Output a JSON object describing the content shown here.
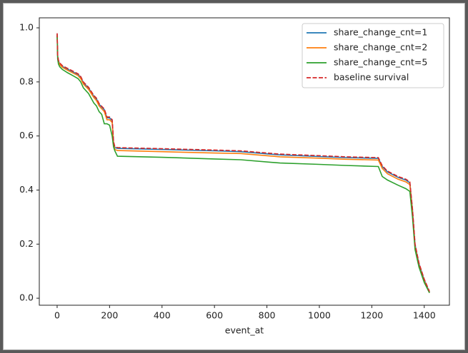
{
  "chart_data": {
    "type": "line",
    "xlabel": "event_at",
    "x": [
      0,
      2,
      5,
      10,
      20,
      40,
      60,
      80,
      90,
      100,
      120,
      140,
      150,
      160,
      170,
      180,
      190,
      200,
      210,
      215,
      220,
      230,
      400,
      600,
      700,
      850,
      1000,
      1100,
      1225,
      1240,
      1260,
      1300,
      1330,
      1345,
      1355,
      1365,
      1380,
      1400,
      1420
    ],
    "series": [
      {
        "name": "share_change_cnt=1",
        "color": "#1f77b4",
        "linestyle": "solid",
        "values": [
          0.977,
          0.897,
          0.877,
          0.867,
          0.857,
          0.847,
          0.837,
          0.827,
          0.817,
          0.797,
          0.777,
          0.747,
          0.737,
          0.717,
          0.707,
          0.697,
          0.667,
          0.667,
          0.657,
          0.577,
          0.557,
          0.554,
          0.55,
          0.545,
          0.542,
          0.53,
          0.524,
          0.52,
          0.517,
          0.487,
          0.467,
          0.447,
          0.437,
          0.427,
          0.327,
          0.197,
          0.127,
          0.067,
          0.022
        ]
      },
      {
        "name": "share_change_cnt=2",
        "color": "#ff7f0e",
        "linestyle": "solid",
        "values": [
          0.975,
          0.895,
          0.874,
          0.864,
          0.854,
          0.843,
          0.833,
          0.823,
          0.812,
          0.792,
          0.772,
          0.742,
          0.731,
          0.711,
          0.701,
          0.69,
          0.66,
          0.66,
          0.65,
          0.57,
          0.55,
          0.546,
          0.542,
          0.537,
          0.535,
          0.523,
          0.518,
          0.514,
          0.511,
          0.48,
          0.46,
          0.44,
          0.43,
          0.42,
          0.32,
          0.19,
          0.12,
          0.062,
          0.02
        ]
      },
      {
        "name": "share_change_cnt=5",
        "color": "#2ca02c",
        "linestyle": "solid",
        "values": [
          0.97,
          0.885,
          0.866,
          0.856,
          0.846,
          0.834,
          0.823,
          0.812,
          0.8,
          0.778,
          0.757,
          0.722,
          0.711,
          0.69,
          0.68,
          0.645,
          0.645,
          0.64,
          0.6,
          0.56,
          0.545,
          0.525,
          0.521,
          0.515,
          0.512,
          0.5,
          0.495,
          0.491,
          0.487,
          0.45,
          0.437,
          0.418,
          0.405,
          0.395,
          0.3,
          0.18,
          0.115,
          0.058,
          0.02
        ]
      },
      {
        "name": "baseline survival",
        "color": "#d62728",
        "linestyle": "dashed",
        "values": [
          0.98,
          0.9,
          0.88,
          0.87,
          0.86,
          0.85,
          0.84,
          0.83,
          0.82,
          0.8,
          0.78,
          0.75,
          0.74,
          0.72,
          0.71,
          0.7,
          0.67,
          0.67,
          0.66,
          0.58,
          0.56,
          0.557,
          0.553,
          0.548,
          0.545,
          0.533,
          0.527,
          0.523,
          0.52,
          0.49,
          0.47,
          0.45,
          0.44,
          0.43,
          0.33,
          0.2,
          0.13,
          0.07,
          0.025
        ]
      }
    ],
    "xlim": [
      -68,
      1496
    ],
    "xticks": [
      0,
      200,
      400,
      600,
      800,
      1000,
      1200,
      1400
    ],
    "ylim": [
      -0.026,
      1.037
    ],
    "yticks": [
      {
        "value": 0,
        "label": "0.0"
      },
      0.2,
      0.4,
      0.6,
      0.8,
      {
        "value": 1,
        "label": "1.0"
      }
    ],
    "grid": false,
    "legend": "upper right"
  }
}
